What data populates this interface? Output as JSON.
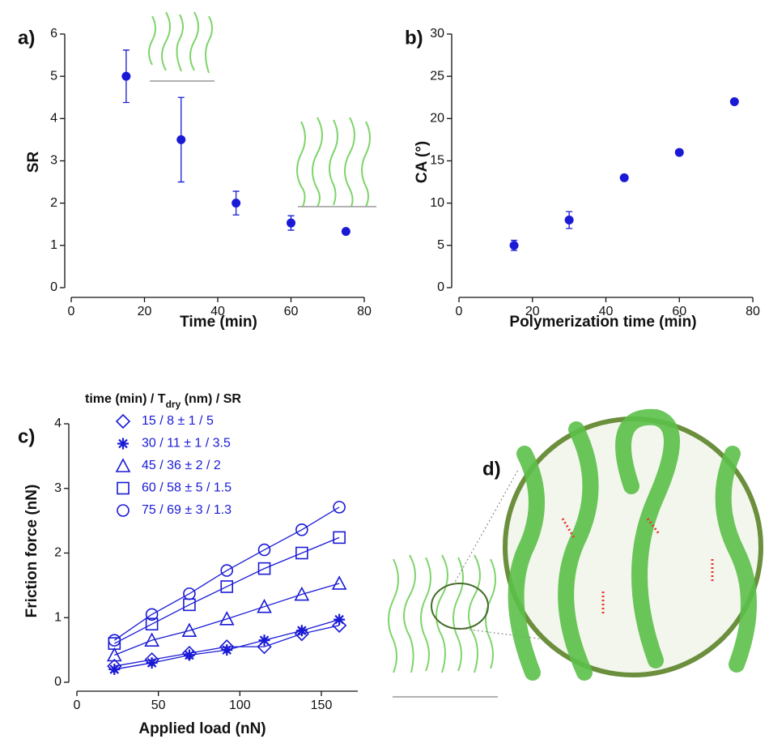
{
  "chart_data": [
    {
      "type": "scatter",
      "panel_label": "a)",
      "x_label": "Time (min)",
      "y_label": "SR",
      "color": "#1a1ad6",
      "x": [
        15,
        30,
        45,
        60,
        75
      ],
      "values": [
        5,
        3.5,
        2,
        1.53,
        1.33
      ],
      "errors": [
        0.62,
        1.0,
        0.28,
        0.17,
        0
      ],
      "xlim": [
        0,
        80
      ],
      "xticks": [
        0,
        20,
        40,
        60,
        80
      ],
      "ylim": [
        0,
        6
      ],
      "yticks": [
        0,
        1,
        2,
        3,
        4,
        5,
        6
      ]
    },
    {
      "type": "scatter",
      "panel_label": "b)",
      "x_label": "Polymerization time (min)",
      "y_label": "CA (°)",
      "color": "#1a1ad6",
      "x": [
        15,
        30,
        45,
        60,
        75
      ],
      "values": [
        5,
        8,
        13,
        16,
        22
      ],
      "errors": [
        0.6,
        1.0,
        0,
        0,
        0
      ],
      "xlim": [
        0,
        80
      ],
      "xticks": [
        0,
        20,
        40,
        60,
        80
      ],
      "ylim": [
        0,
        30
      ],
      "yticks": [
        0,
        5,
        10,
        15,
        20,
        25,
        30
      ]
    },
    {
      "type": "line",
      "panel_label": "c)",
      "x_label": "Applied load (nN)",
      "y_label": "Friction force (nN)",
      "legend_title": [
        "time (min) / T",
        "dry",
        " (nm) / SR"
      ],
      "x": [
        23,
        46,
        69,
        92,
        115,
        138,
        161
      ],
      "series": [
        {
          "name": "15 / 8 ± 1 / 5",
          "marker": "diamond",
          "color": "#1a1ad6",
          "values": [
            0.25,
            0.35,
            0.45,
            0.55,
            0.55,
            0.75,
            0.88
          ]
        },
        {
          "name": "30 / 11 ± 1 / 3.5",
          "marker": "asterisk",
          "color": "#1a1ad6",
          "values": [
            0.2,
            0.3,
            0.42,
            0.5,
            0.65,
            0.8,
            0.97
          ]
        },
        {
          "name": "45 / 36 ± 2 / 2",
          "marker": "triangle",
          "color": "#1a1ad6",
          "values": [
            0.42,
            0.65,
            0.8,
            0.98,
            1.17,
            1.36,
            1.53
          ]
        },
        {
          "name": "60 / 58 ± 5 / 1.5",
          "marker": "square",
          "color": "#1a1ad6",
          "values": [
            0.6,
            0.9,
            1.2,
            1.48,
            1.76,
            2.0,
            2.24
          ]
        },
        {
          "name": "75 / 69 ± 3 / 1.3",
          "marker": "circle",
          "color": "#1a1ad6",
          "values": [
            0.65,
            1.05,
            1.37,
            1.73,
            2.05,
            2.36,
            2.71
          ]
        }
      ],
      "xlim": [
        0,
        150
      ],
      "xticks": [
        0,
        50,
        100,
        150
      ],
      "ylim": [
        0,
        4
      ],
      "yticks": [
        0,
        1,
        2,
        3,
        4
      ]
    }
  ],
  "diagram": {
    "label": "d)"
  }
}
